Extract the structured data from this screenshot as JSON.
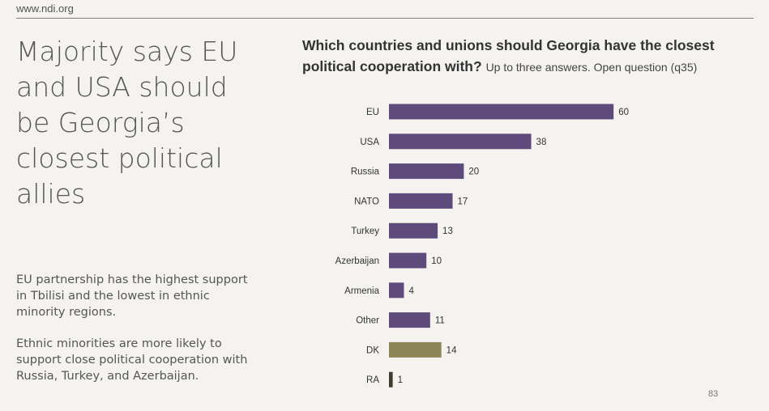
{
  "header": {
    "url": "www.ndi.org"
  },
  "headline": "Majority says EU and USA should be Georgia’s closest political allies",
  "body": {
    "paragraph1": "EU partnership has the highest support in Tbilisi and the lowest in ethnic minority regions.",
    "paragraph2": "Ethnic minorities are more likely to support close political cooperation with Russia, Turkey, and Azerbaijan."
  },
  "question": {
    "bold": "Which countries and unions should Georgia have the closest political cooperation with?",
    "note": "Up to three answers. Open question (q35)"
  },
  "page_number": "83",
  "chart_data": {
    "type": "bar",
    "orientation": "horizontal",
    "categories": [
      "EU",
      "USA",
      "Russia",
      "NATO",
      "Turkey",
      "Azerbaijan",
      "Armenia",
      "Other",
      "DK",
      "RA"
    ],
    "values": [
      60,
      38,
      20,
      17,
      13,
      10,
      4,
      11,
      14,
      1
    ],
    "bar_colors": [
      "#5e4b7c",
      "#5e4b7c",
      "#5e4b7c",
      "#5e4b7c",
      "#5e4b7c",
      "#5e4b7c",
      "#5e4b7c",
      "#5e4b7c",
      "#8c8555",
      "#3d3b32"
    ],
    "xlim": [
      0,
      100
    ],
    "grid": false,
    "data_labels": true
  }
}
